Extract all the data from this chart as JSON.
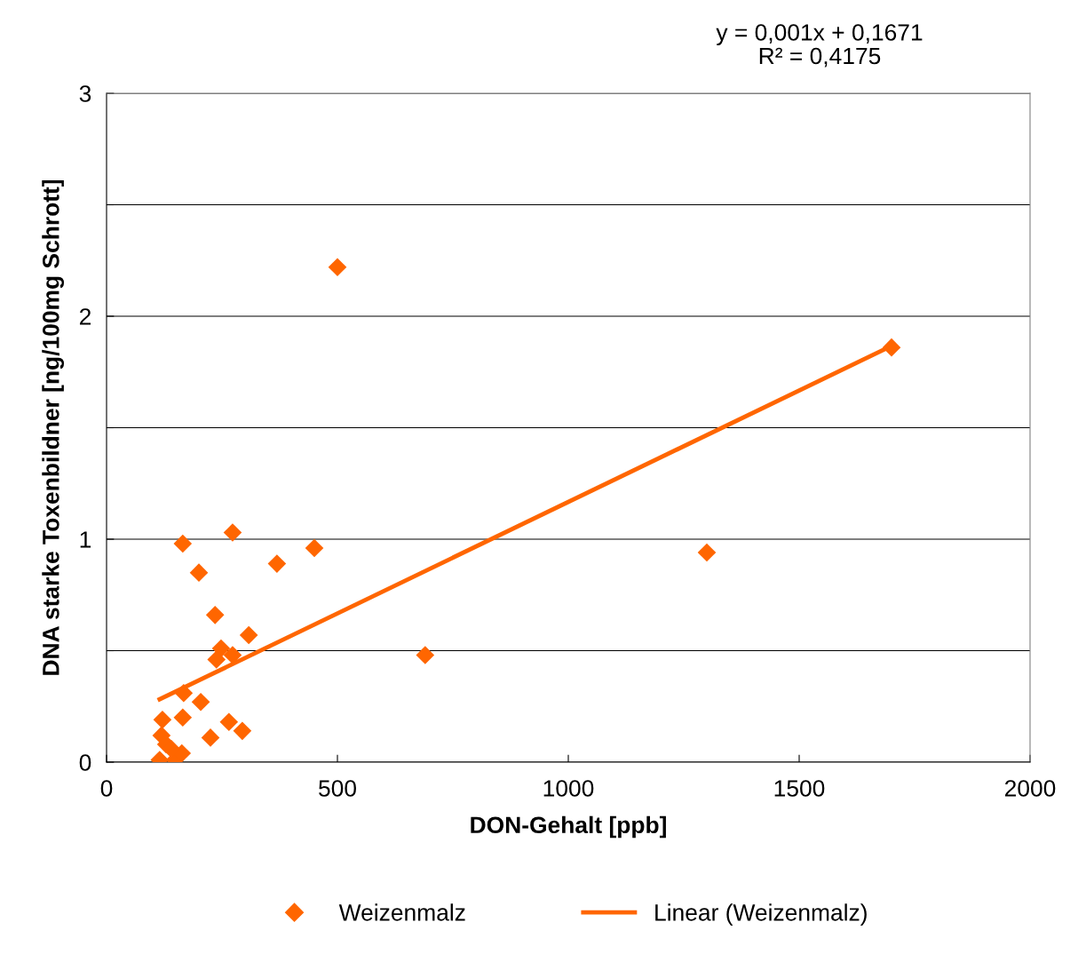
{
  "chart_data": {
    "type": "scatter",
    "xlabel": "DON-Gehalt [ppb]",
    "ylabel": "DNA starke Toxenbildner [ng/100mg Schrott]",
    "annotations": [
      "y = 0,001x + 0,1671\nR² = 0,4175"
    ],
    "xlim": [
      0,
      2000
    ],
    "xticks": [
      0,
      500,
      1000,
      1500,
      2000
    ],
    "ylim": [
      0,
      3
    ],
    "yticks": [
      0,
      {
        "value": 0.5,
        "label": null
      },
      1,
      {
        "value": 1.5,
        "label": null
      },
      2,
      {
        "value": 2.5,
        "label": null
      },
      3
    ],
    "grid": "y",
    "legend": "bottom",
    "marker": "diamond",
    "series": [
      {
        "name": "Weizenmalz",
        "color": "#ff6600",
        "x": [
          500,
          1700,
          1300,
          690,
          450,
          369,
          273,
          165,
          200,
          235,
          308,
          248,
          238,
          273,
          167,
          204,
          165,
          121,
          225,
          265,
          294,
          119,
          129,
          115,
          148,
          163,
          140
        ],
        "values": [
          2.22,
          1.86,
          0.94,
          0.48,
          0.96,
          0.89,
          1.03,
          0.98,
          0.85,
          0.66,
          0.57,
          0.51,
          0.46,
          0.48,
          0.31,
          0.27,
          0.2,
          0.19,
          0.11,
          0.18,
          0.14,
          0.12,
          0.08,
          0.01,
          0.01,
          0.04,
          0.06
        ]
      },
      {
        "name": "Linear (Weizenmalz)",
        "color": "#ff6600",
        "type": "line",
        "line_style": "solid",
        "marker": "none",
        "x": [
          115,
          1700
        ],
        "values": [
          0.282,
          1.867
        ]
      }
    ]
  }
}
